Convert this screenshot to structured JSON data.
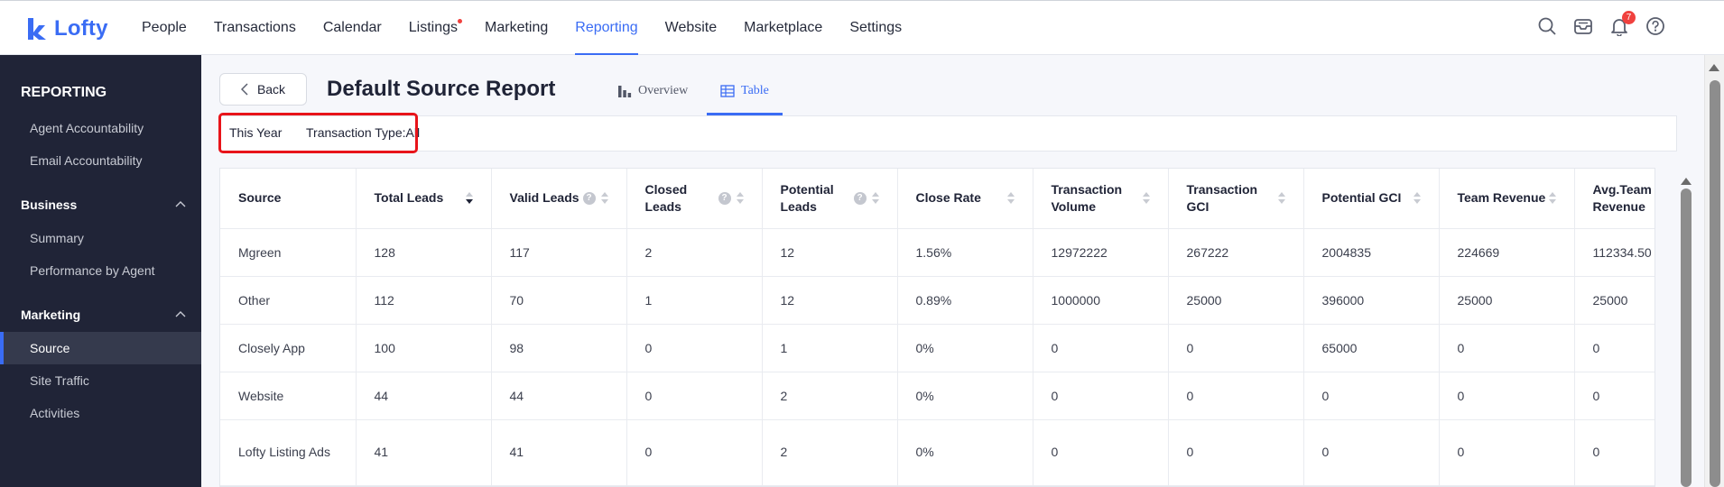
{
  "app": {
    "logo_text": "Lofty",
    "nav": [
      {
        "label": "People"
      },
      {
        "label": "Transactions"
      },
      {
        "label": "Calendar"
      },
      {
        "label": "Listings"
      },
      {
        "label": "Marketing"
      },
      {
        "label": "Reporting"
      },
      {
        "label": "Website"
      },
      {
        "label": "Marketplace"
      },
      {
        "label": "Settings"
      }
    ],
    "active_nav": "Reporting",
    "notification_count": "7",
    "accent_color": "#3a6cf4"
  },
  "sidebar": {
    "heading": "REPORTING",
    "top_items": [
      {
        "label": "Agent Accountability"
      },
      {
        "label": "Email Accountability"
      }
    ],
    "business": {
      "label": "Business",
      "items": [
        {
          "label": "Summary"
        },
        {
          "label": "Performance by Agent"
        }
      ]
    },
    "marketing": {
      "label": "Marketing",
      "items": [
        {
          "label": "Source"
        },
        {
          "label": "Site Traffic"
        },
        {
          "label": "Activities"
        }
      ]
    },
    "active_item": "Source"
  },
  "page": {
    "back_label": "Back",
    "title": "Default Source Report",
    "tabs": [
      {
        "label": "Overview",
        "icon": "bar-chart-icon"
      },
      {
        "label": "Table",
        "icon": "table-icon"
      }
    ],
    "active_tab": "Table",
    "filters": {
      "period": "This Year",
      "transaction_type": "Transaction Type:All"
    }
  },
  "table": {
    "columns": [
      {
        "label": "Source"
      },
      {
        "label": "Total Leads"
      },
      {
        "label": "Valid Leads"
      },
      {
        "label": "Closed Leads"
      },
      {
        "label": "Potential Leads"
      },
      {
        "label": "Close Rate"
      },
      {
        "label": "Transaction Volume"
      },
      {
        "label": "Transaction GCI"
      },
      {
        "label": "Potential GCI"
      },
      {
        "label": "Team Revenue"
      },
      {
        "label": "Avg.Team Revenue"
      }
    ],
    "rows": [
      {
        "cells": [
          "Mgreen",
          "128",
          "117",
          "2",
          "12",
          "1.56%",
          "12972222",
          "267222",
          "2004835",
          "224669",
          "112334.50"
        ]
      },
      {
        "cells": [
          "Other",
          "112",
          "70",
          "1",
          "12",
          "0.89%",
          "1000000",
          "25000",
          "396000",
          "25000",
          "25000"
        ]
      },
      {
        "cells": [
          "Closely App",
          "100",
          "98",
          "0",
          "1",
          "0%",
          "0",
          "0",
          "65000",
          "0",
          "0"
        ]
      },
      {
        "cells": [
          "Website",
          "44",
          "44",
          "0",
          "2",
          "0%",
          "0",
          "0",
          "0",
          "0",
          "0"
        ]
      },
      {
        "cells": [
          "Lofty Listing Ads",
          "41",
          "41",
          "0",
          "2",
          "0%",
          "0",
          "0",
          "0",
          "0",
          "0"
        ]
      }
    ]
  }
}
